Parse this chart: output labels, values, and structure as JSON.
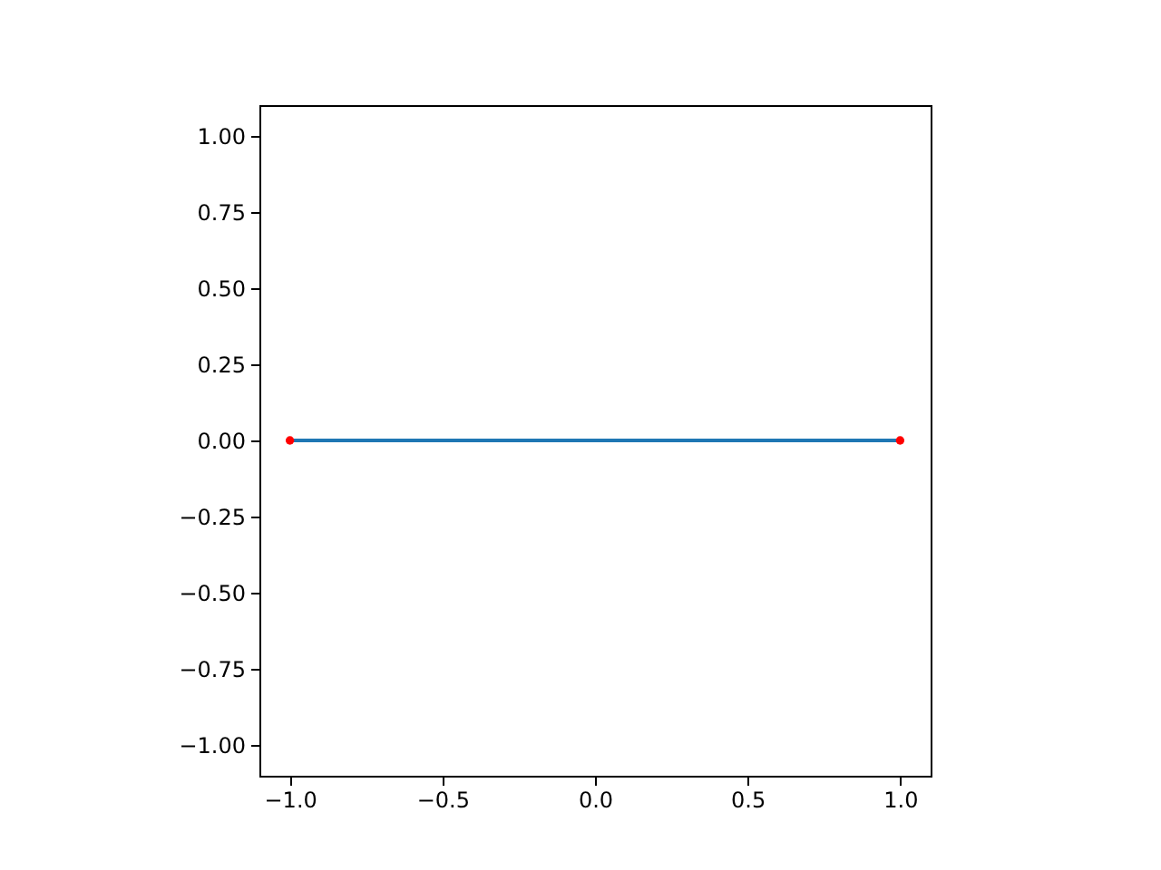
{
  "chart_data": {
    "type": "line",
    "x": [
      -1,
      1
    ],
    "xlim": [
      -1.1,
      1.1
    ],
    "ylim": [
      -1.1,
      1.1
    ],
    "xticks": [
      {
        "value": -1,
        "label": "−1.0"
      },
      {
        "value": -0.5,
        "label": "−0.5"
      },
      {
        "value": 0,
        "label": "0.0"
      },
      {
        "value": 0.5,
        "label": "0.5"
      },
      {
        "value": 1,
        "label": "1.0"
      }
    ],
    "yticks": [
      {
        "value": -1,
        "label": "−1.00"
      },
      {
        "value": -0.75,
        "label": "−0.75"
      },
      {
        "value": -0.5,
        "label": "−0.50"
      },
      {
        "value": -0.25,
        "label": "−0.25"
      },
      {
        "value": 0,
        "label": "0.00"
      },
      {
        "value": 0.25,
        "label": "0.25"
      },
      {
        "value": 0.5,
        "label": "0.50"
      },
      {
        "value": 0.75,
        "label": "0.75"
      },
      {
        "value": 1,
        "label": "1.00"
      }
    ],
    "series": [
      {
        "color": "#1f77b4",
        "values": [
          0,
          0
        ],
        "marker": "none",
        "line_style": "solid"
      },
      {
        "type": "scatter",
        "color": "#ff0000",
        "values": [
          0,
          0
        ],
        "marker": "circle"
      }
    ]
  }
}
